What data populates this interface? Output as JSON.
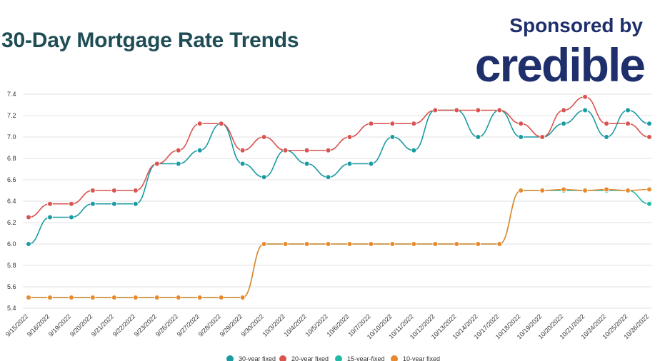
{
  "header": {
    "title": "30-Day Mortgage Rate Trends",
    "sponsor_line": "Sponsored by",
    "brand": "credible"
  },
  "colors": {
    "title": "#1f4d56",
    "brand": "#1e2f6b",
    "grid": "#e2e2e2"
  },
  "chart_data": {
    "type": "line",
    "title": "30-Day Mortgage Rate Trends",
    "xlabel": "",
    "ylabel": "",
    "ylim": [
      5.4,
      7.4
    ],
    "yticks": [
      5.4,
      5.6,
      5.8,
      6.0,
      6.2,
      6.4,
      6.6,
      6.8,
      7.0,
      7.2,
      7.4
    ],
    "grid": true,
    "legend": "bottom",
    "categories": [
      "9/15/2022",
      "9/16/2022",
      "9/19/2022",
      "9/20/2022",
      "9/21/2022",
      "9/22/2022",
      "9/23/2022",
      "9/26/2022",
      "9/27/2022",
      "9/28/2022",
      "9/29/2022",
      "9/30/2022",
      "10/3/2022",
      "10/4/2022",
      "10/5/2022",
      "10/6/2022",
      "10/7/2022",
      "10/10/2022",
      "10/11/2022",
      "10/12/2022",
      "10/13/2022",
      "10/14/2022",
      "10/17/2022",
      "10/18/2022",
      "10/19/2022",
      "10/20/2022",
      "10/21/2022",
      "10/24/2022",
      "10/25/2022",
      "10/26/2022"
    ],
    "series": [
      {
        "name": "30-year fixed",
        "color": "#1a9ba1",
        "values": [
          6.0,
          6.25,
          6.25,
          6.375,
          6.375,
          6.375,
          6.75,
          6.75,
          6.875,
          7.125,
          6.75,
          6.625,
          6.875,
          6.75,
          6.625,
          6.75,
          6.75,
          7.0,
          6.875,
          7.25,
          7.25,
          7.0,
          7.25,
          7.0,
          7.0,
          7.125,
          7.25,
          7.0,
          7.25,
          7.125
        ]
      },
      {
        "name": "20-year fixed",
        "color": "#d9534f",
        "values": [
          6.25,
          6.375,
          6.375,
          6.5,
          6.5,
          6.5,
          6.75,
          6.875,
          7.125,
          7.125,
          6.875,
          7.0,
          6.875,
          6.875,
          6.875,
          7.0,
          7.125,
          7.125,
          7.125,
          7.25,
          7.25,
          7.25,
          7.25,
          7.125,
          7.0,
          7.25,
          7.375,
          7.125,
          7.125,
          7.0
        ]
      },
      {
        "name": "15-year-fixed",
        "color": "#1fbba6",
        "values": [
          5.5,
          5.5,
          5.5,
          5.5,
          5.5,
          5.5,
          5.5,
          5.5,
          5.5,
          5.5,
          5.5,
          6.0,
          6.0,
          6.0,
          6.0,
          6.0,
          6.0,
          6.0,
          6.0,
          6.0,
          6.0,
          6.0,
          6.0,
          6.5,
          6.5,
          6.5,
          6.5,
          6.5,
          6.5,
          6.375
        ]
      },
      {
        "name": "10-year fixed",
        "color": "#e8892e",
        "values": [
          5.5,
          5.5,
          5.5,
          5.5,
          5.5,
          5.5,
          5.5,
          5.5,
          5.5,
          5.5,
          5.5,
          6.0,
          6.0,
          6.0,
          6.0,
          6.0,
          6.0,
          6.0,
          6.0,
          6.0,
          6.0,
          6.0,
          6.0,
          6.5,
          6.5,
          6.51,
          6.5,
          6.51,
          6.5,
          6.51
        ]
      }
    ]
  }
}
